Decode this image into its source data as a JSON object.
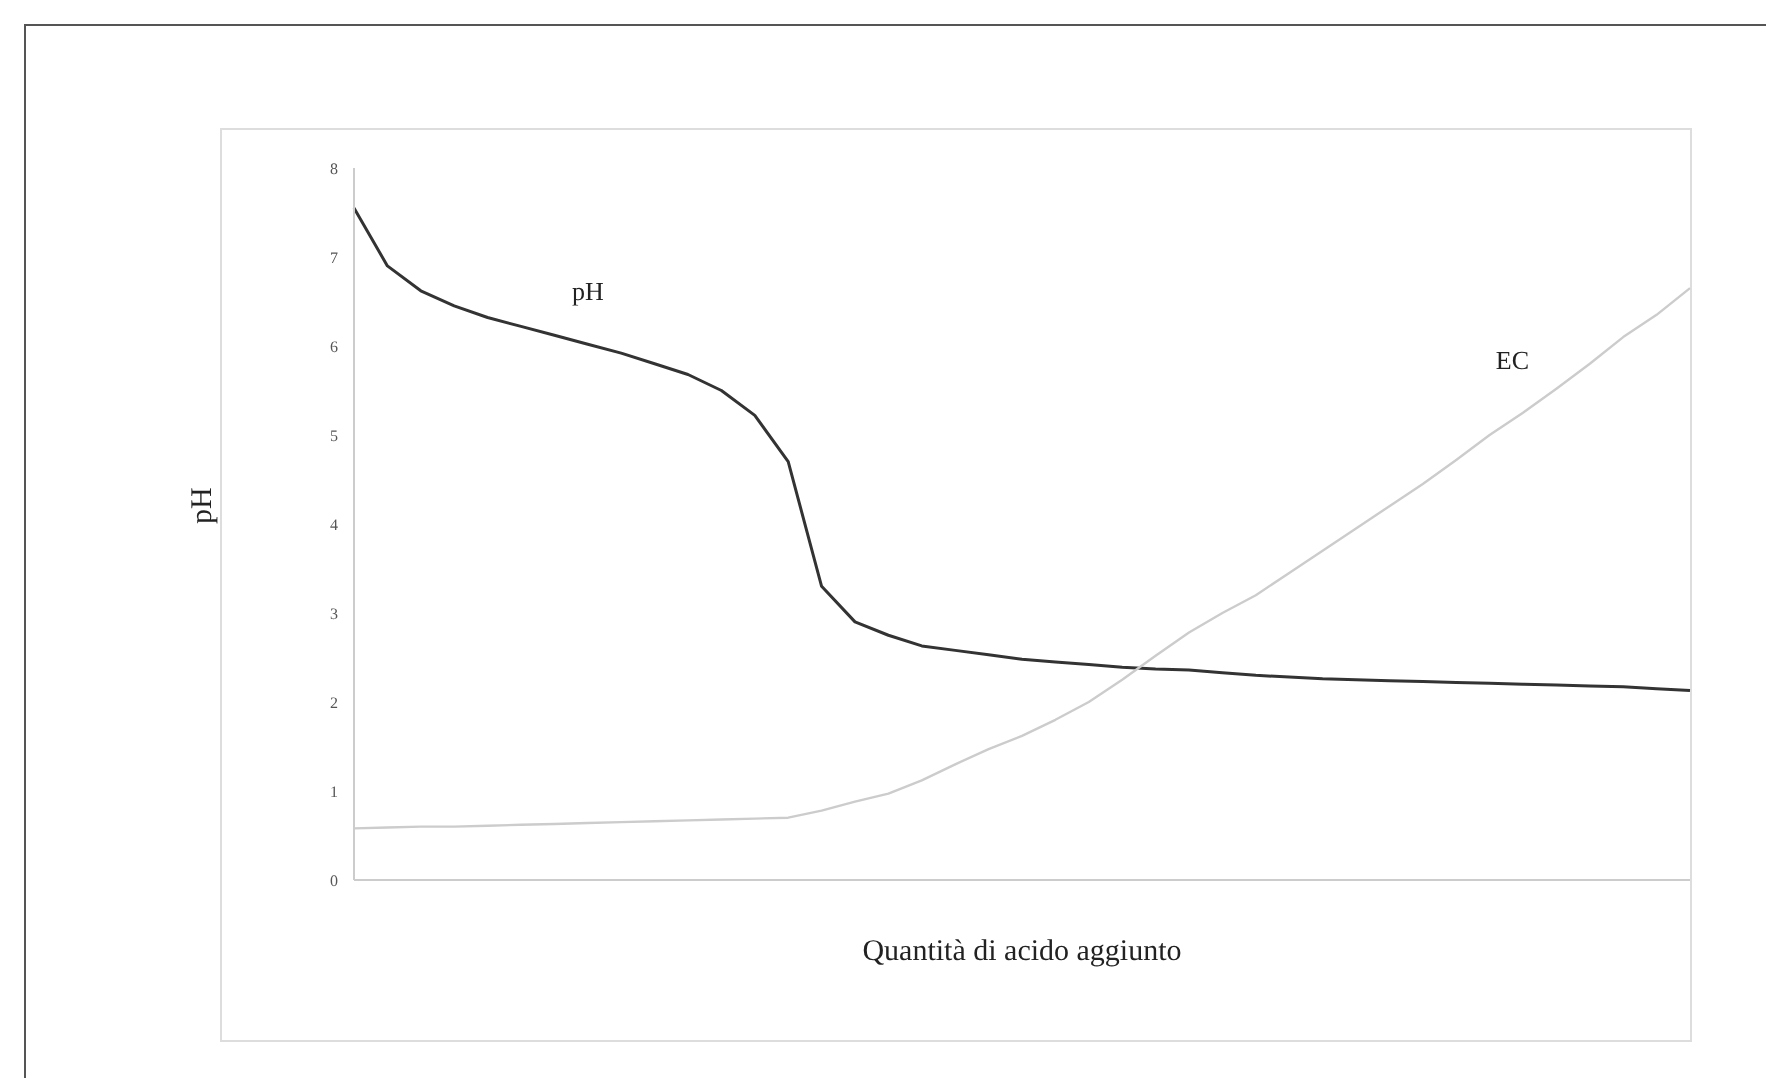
{
  "chart_data": {
    "type": "line",
    "xlabel": "Quantità di acido aggiunto",
    "ylabel": "pH",
    "categories": [
      null,
      null,
      null,
      null,
      null,
      null,
      null,
      null,
      null,
      null,
      null,
      null,
      null,
      null,
      null,
      null,
      null,
      null,
      null,
      null,
      null,
      null,
      null,
      null,
      null,
      null,
      null,
      null,
      null,
      null,
      null,
      null,
      null,
      null,
      null,
      null,
      null,
      null,
      null,
      null,
      null
    ],
    "series": [
      {
        "name": "pH",
        "color": "#333333",
        "values": [
          7.55,
          6.9,
          6.62,
          6.45,
          6.32,
          6.22,
          6.12,
          6.02,
          5.92,
          5.8,
          5.68,
          5.5,
          5.22,
          4.7,
          3.3,
          2.9,
          2.75,
          2.63,
          2.58,
          2.53,
          2.48,
          2.45,
          2.42,
          2.39,
          2.37,
          2.36,
          2.33,
          2.3,
          2.28,
          2.26,
          2.25,
          2.24,
          2.23,
          2.22,
          2.21,
          2.2,
          2.19,
          2.18,
          2.17,
          2.15,
          2.13
        ]
      },
      {
        "name": "EC",
        "color": "#cccccc",
        "values": [
          0.58,
          0.59,
          0.6,
          0.6,
          0.61,
          0.62,
          0.63,
          0.64,
          0.65,
          0.66,
          0.67,
          0.68,
          0.69,
          0.7,
          0.78,
          0.88,
          0.97,
          1.12,
          1.3,
          1.47,
          1.62,
          1.8,
          2.0,
          2.25,
          2.52,
          2.78,
          3.0,
          3.2,
          3.45,
          3.7,
          3.95,
          4.2,
          4.45,
          4.72,
          5.0,
          5.25,
          5.52,
          5.8,
          6.1,
          6.35,
          6.65
        ]
      }
    ],
    "ylim": [
      0,
      8
    ],
    "yticks": [
      0,
      1,
      2,
      3,
      4,
      5,
      6,
      7,
      8
    ],
    "grid": false,
    "legend": false,
    "marker": "none",
    "line_style": "solid"
  }
}
